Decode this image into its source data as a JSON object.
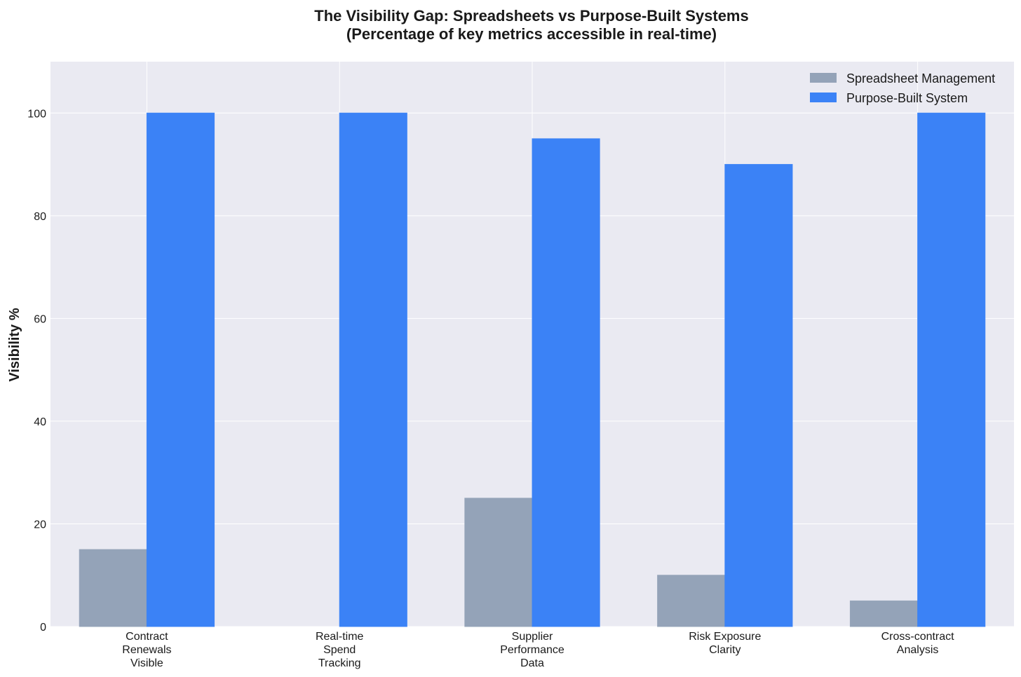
{
  "chart_data": {
    "type": "bar",
    "title": "The Visibility Gap: Spreadsheets vs Purpose-Built Systems",
    "subtitle": "(Percentage of key metrics accessible in real-time)",
    "xlabel": "",
    "ylabel": "Visibility %",
    "ylim": [
      0,
      110
    ],
    "yticks": [
      "0",
      "20",
      "40",
      "60",
      "80",
      "100"
    ],
    "categories": [
      [
        "Contract",
        "Renewals",
        "Visible"
      ],
      [
        "Real-time",
        "Spend",
        "Tracking"
      ],
      [
        "Supplier",
        "Performance",
        "Data"
      ],
      [
        "Risk Exposure",
        "Clarity"
      ],
      [
        "Cross-contract",
        "Analysis"
      ]
    ],
    "series": [
      {
        "name": "Spreadsheet Management",
        "color": "#94a3b8",
        "values": [
          15,
          0,
          25,
          10,
          5
        ]
      },
      {
        "name": "Purpose-Built System",
        "color": "#3b82f6",
        "values": [
          100,
          100,
          95,
          90,
          100
        ]
      }
    ],
    "grid": true,
    "legend": "top-right",
    "background": "#eaeaf2"
  }
}
